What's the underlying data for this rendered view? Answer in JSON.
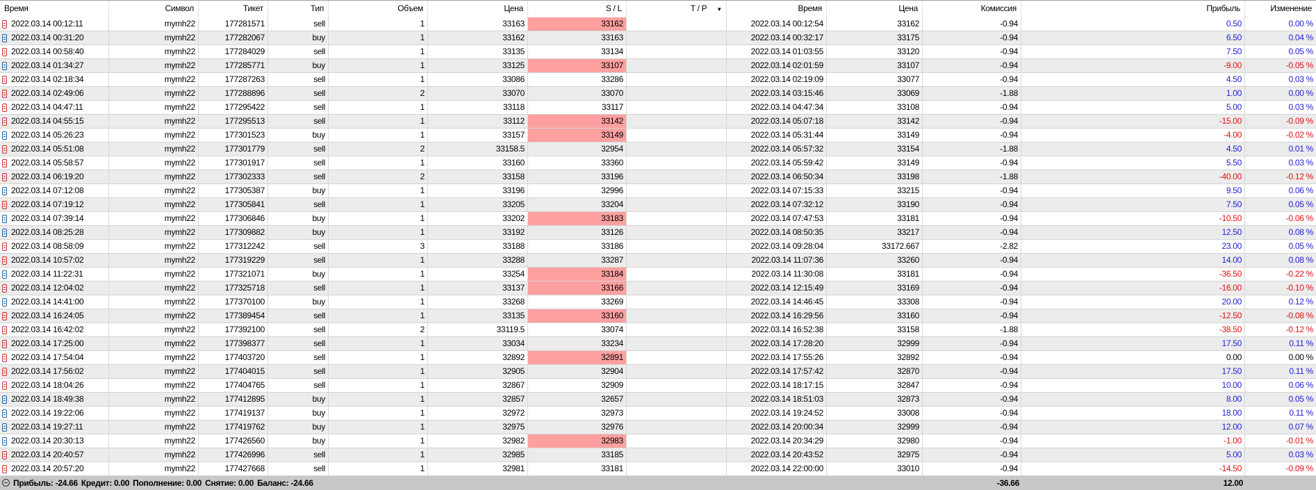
{
  "columns": [
    "Время",
    "Символ",
    "Тикет",
    "Тип",
    "Объем",
    "Цена",
    "S / L",
    "T / P",
    "Время",
    "Цена",
    "Комиссия",
    "",
    "Прибыль",
    "Изменение"
  ],
  "sort_indicator": "▼",
  "colors": {
    "sl_hit": "#ffa0a0",
    "profit_positive": "#2020d0",
    "profit_negative": "#e01010",
    "sell_icon": "#c83030",
    "buy_icon": "#20609a",
    "footer_bg": "#c8c8c8"
  },
  "rows": [
    [
      "2022.03.14 00:12:11",
      "mymh22",
      "177281571",
      "sell",
      "1",
      "33163",
      "33162",
      true,
      "",
      "2022.03.14 00:12:54",
      "33162",
      "-0.94",
      "0.50",
      "0.00 %"
    ],
    [
      "2022.03.14 00:31:20",
      "mymh22",
      "177282067",
      "buy",
      "1",
      "33162",
      "33163",
      false,
      "",
      "2022.03.14 00:32:17",
      "33175",
      "-0.94",
      "6.50",
      "0.04 %"
    ],
    [
      "2022.03.14 00:58:40",
      "mymh22",
      "177284029",
      "sell",
      "1",
      "33135",
      "33134",
      false,
      "",
      "2022.03.14 01:03:55",
      "33120",
      "-0.94",
      "7.50",
      "0.05 %"
    ],
    [
      "2022.03.14 01:34:27",
      "mymh22",
      "177285771",
      "buy",
      "1",
      "33125",
      "33107",
      true,
      "",
      "2022.03.14 02:01:59",
      "33107",
      "-0.94",
      "-9.00",
      "-0.05 %"
    ],
    [
      "2022.03.14 02:18:34",
      "mymh22",
      "177287263",
      "sell",
      "1",
      "33086",
      "33286",
      false,
      "",
      "2022.03.14 02:19:09",
      "33077",
      "-0.94",
      "4.50",
      "0.03 %"
    ],
    [
      "2022.03.14 02:49:06",
      "mymh22",
      "177288896",
      "sell",
      "2",
      "33070",
      "33070",
      false,
      "",
      "2022.03.14 03:15:46",
      "33069",
      "-1.88",
      "1.00",
      "0.00 %"
    ],
    [
      "2022.03.14 04:47:11",
      "mymh22",
      "177295422",
      "sell",
      "1",
      "33118",
      "33117",
      false,
      "",
      "2022.03.14 04:47:34",
      "33108",
      "-0.94",
      "5.00",
      "0.03 %"
    ],
    [
      "2022.03.14 04:55:15",
      "mymh22",
      "177295513",
      "sell",
      "1",
      "33112",
      "33142",
      true,
      "",
      "2022.03.14 05:07:18",
      "33142",
      "-0.94",
      "-15.00",
      "-0.09 %"
    ],
    [
      "2022.03.14 05:26:23",
      "mymh22",
      "177301523",
      "buy",
      "1",
      "33157",
      "33149",
      true,
      "",
      "2022.03.14 05:31:44",
      "33149",
      "-0.94",
      "-4.00",
      "-0.02 %"
    ],
    [
      "2022.03.14 05:51:08",
      "mymh22",
      "177301779",
      "sell",
      "2",
      "33158.5",
      "32954",
      false,
      "",
      "2022.03.14 05:57:32",
      "33154",
      "-1.88",
      "4.50",
      "0.01 %"
    ],
    [
      "2022.03.14 05:58:57",
      "mymh22",
      "177301917",
      "sell",
      "1",
      "33160",
      "33360",
      false,
      "",
      "2022.03.14 05:59:42",
      "33149",
      "-0.94",
      "5.50",
      "0.03 %"
    ],
    [
      "2022.03.14 06:19:20",
      "mymh22",
      "177302333",
      "sell",
      "2",
      "33158",
      "33196",
      false,
      "",
      "2022.03.14 06:50:34",
      "33198",
      "-1.88",
      "-40.00",
      "-0.12 %"
    ],
    [
      "2022.03.14 07:12:08",
      "mymh22",
      "177305387",
      "buy",
      "1",
      "33196",
      "32996",
      false,
      "",
      "2022.03.14 07:15:33",
      "33215",
      "-0.94",
      "9.50",
      "0.06 %"
    ],
    [
      "2022.03.14 07:19:12",
      "mymh22",
      "177305841",
      "sell",
      "1",
      "33205",
      "33204",
      false,
      "",
      "2022.03.14 07:32:12",
      "33190",
      "-0.94",
      "7.50",
      "0.05 %"
    ],
    [
      "2022.03.14 07:39:14",
      "mymh22",
      "177306846",
      "buy",
      "1",
      "33202",
      "33183",
      true,
      "",
      "2022.03.14 07:47:53",
      "33181",
      "-0.94",
      "-10.50",
      "-0.06 %"
    ],
    [
      "2022.03.14 08:25:28",
      "mymh22",
      "177309882",
      "buy",
      "1",
      "33192",
      "33126",
      false,
      "",
      "2022.03.14 08:50:35",
      "33217",
      "-0.94",
      "12.50",
      "0.08 %"
    ],
    [
      "2022.03.14 08:58:09",
      "mymh22",
      "177312242",
      "sell",
      "3",
      "33188",
      "33186",
      false,
      "",
      "2022.03.14 09:28:04",
      "33172.667",
      "-2.82",
      "23.00",
      "0.05 %"
    ],
    [
      "2022.03.14 10:57:02",
      "mymh22",
      "177319229",
      "sell",
      "1",
      "33288",
      "33287",
      false,
      "",
      "2022.03.14 11:07:36",
      "33260",
      "-0.94",
      "14.00",
      "0.08 %"
    ],
    [
      "2022.03.14 11:22:31",
      "mymh22",
      "177321071",
      "buy",
      "1",
      "33254",
      "33184",
      true,
      "",
      "2022.03.14 11:30:08",
      "33181",
      "-0.94",
      "-36.50",
      "-0.22 %"
    ],
    [
      "2022.03.14 12:04:02",
      "mymh22",
      "177325718",
      "sell",
      "1",
      "33137",
      "33166",
      true,
      "",
      "2022.03.14 12:15:49",
      "33169",
      "-0.94",
      "-16.00",
      "-0.10 %"
    ],
    [
      "2022.03.14 14:41:00",
      "mymh22",
      "177370100",
      "buy",
      "1",
      "33268",
      "33269",
      false,
      "",
      "2022.03.14 14:46:45",
      "33308",
      "-0.94",
      "20.00",
      "0.12 %"
    ],
    [
      "2022.03.14 16:24:05",
      "mymh22",
      "177389454",
      "sell",
      "1",
      "33135",
      "33160",
      true,
      "",
      "2022.03.14 16:29:56",
      "33160",
      "-0.94",
      "-12.50",
      "-0.08 %"
    ],
    [
      "2022.03.14 16:42:02",
      "mymh22",
      "177392100",
      "sell",
      "2",
      "33119.5",
      "33074",
      false,
      "",
      "2022.03.14 16:52:38",
      "33158",
      "-1.88",
      "-38.50",
      "-0.12 %"
    ],
    [
      "2022.03.14 17:25:00",
      "mymh22",
      "177398377",
      "sell",
      "1",
      "33034",
      "33234",
      false,
      "",
      "2022.03.14 17:28:20",
      "32999",
      "-0.94",
      "17.50",
      "0.11 %"
    ],
    [
      "2022.03.14 17:54:04",
      "mymh22",
      "177403720",
      "sell",
      "1",
      "32892",
      "32891",
      true,
      "",
      "2022.03.14 17:55:26",
      "32892",
      "-0.94",
      "0.00",
      "0.00 %"
    ],
    [
      "2022.03.14 17:56:02",
      "mymh22",
      "177404015",
      "sell",
      "1",
      "32905",
      "32904",
      false,
      "",
      "2022.03.14 17:57:42",
      "32870",
      "-0.94",
      "17.50",
      "0.11 %"
    ],
    [
      "2022.03.14 18:04:26",
      "mymh22",
      "177404765",
      "sell",
      "1",
      "32867",
      "32909",
      false,
      "",
      "2022.03.14 18:17:15",
      "32847",
      "-0.94",
      "10.00",
      "0.06 %"
    ],
    [
      "2022.03.14 18:49:38",
      "mymh22",
      "177412895",
      "buy",
      "1",
      "32857",
      "32657",
      false,
      "",
      "2022.03.14 18:51:03",
      "32873",
      "-0.94",
      "8.00",
      "0.05 %"
    ],
    [
      "2022.03.14 19:22:06",
      "mymh22",
      "177419137",
      "buy",
      "1",
      "32972",
      "32973",
      false,
      "",
      "2022.03.14 19:24:52",
      "33008",
      "-0.94",
      "18.00",
      "0.11 %"
    ],
    [
      "2022.03.14 19:27:11",
      "mymh22",
      "177419762",
      "buy",
      "1",
      "32975",
      "32976",
      false,
      "",
      "2022.03.14 20:00:34",
      "32999",
      "-0.94",
      "12.00",
      "0.07 %"
    ],
    [
      "2022.03.14 20:30:13",
      "mymh22",
      "177426560",
      "buy",
      "1",
      "32982",
      "32983",
      true,
      "",
      "2022.03.14 20:34:29",
      "32980",
      "-0.94",
      "-1.00",
      "-0.01 %"
    ],
    [
      "2022.03.14 20:40:57",
      "mymh22",
      "177426996",
      "sell",
      "1",
      "32985",
      "33185",
      false,
      "",
      "2022.03.14 20:43:52",
      "32975",
      "-0.94",
      "5.00",
      "0.03 %"
    ],
    [
      "2022.03.14 20:57:20",
      "mymh22",
      "177427668",
      "sell",
      "1",
      "32981",
      "33181",
      false,
      "",
      "2022.03.14 22:00:00",
      "33010",
      "-0.94",
      "-14.50",
      "-0.09 %"
    ]
  ],
  "footer": {
    "profit": "Прибыль: -24.66",
    "credit": "Кредит: 0.00",
    "deposit": "Пополнение: 0.00",
    "withdrawal": "Снятие: 0.00",
    "balance": "Баланс: -24.66",
    "commission_total": "-36.66",
    "profit_total": "12.00"
  }
}
